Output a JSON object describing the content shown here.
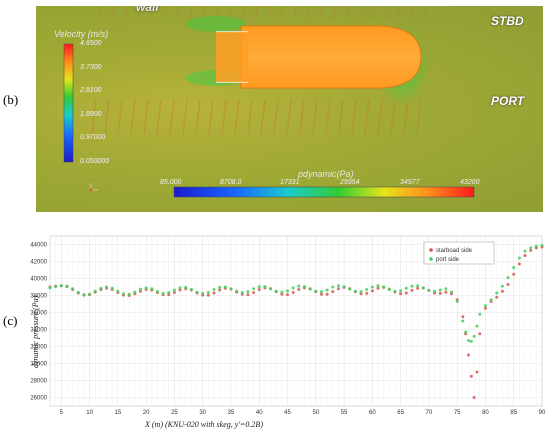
{
  "panels": {
    "b_label": "(b)",
    "c_label": "(c)"
  },
  "simulation": {
    "wall_label": "wall",
    "stbd_label": "STBD",
    "port_label": "PORT",
    "velocity_legend": {
      "title": "Velocity (m/s)",
      "ticks": [
        "4.6500",
        "3.7300",
        "2.8100",
        "1.8900",
        "0.97000",
        "0.050000"
      ]
    },
    "pressure_legend": {
      "title": "pdynamic(Pa)",
      "ticks": [
        "85.000",
        "8708.0",
        "17331",
        "25954",
        "34577",
        "43200"
      ]
    },
    "colors": {
      "background": "#a3aa36",
      "hull": "#ffa42a",
      "hull_edge": "#e07a10"
    }
  },
  "chart_data": {
    "type": "scatter",
    "xlabel": "X (m)    (KNU-020 with skeg, y'=0.2B)",
    "ylabel": "dynamic pressure (Pa)",
    "xlim": [
      3,
      90
    ],
    "ylim": [
      25000,
      45000
    ],
    "xticks": [
      5,
      10,
      15,
      20,
      25,
      30,
      35,
      40,
      45,
      50,
      55,
      60,
      65,
      70,
      75,
      80,
      85,
      90
    ],
    "yticks": [
      26000,
      28000,
      30000,
      32000,
      34000,
      36000,
      38000,
      40000,
      42000,
      44000
    ],
    "legend_position": "top-right",
    "grid": true,
    "series": [
      {
        "name": "starboad side",
        "color": "#d9534f",
        "x": [
          3,
          4,
          5,
          6,
          7,
          8,
          9,
          10,
          11,
          12,
          13,
          14,
          15,
          16,
          17,
          18,
          19,
          20,
          21,
          22,
          23,
          24,
          25,
          26,
          27,
          28,
          29,
          30,
          31,
          32,
          33,
          34,
          35,
          36,
          37,
          38,
          39,
          40,
          41,
          42,
          43,
          44,
          45,
          46,
          47,
          48,
          49,
          50,
          51,
          52,
          53,
          54,
          55,
          56,
          57,
          58,
          59,
          60,
          61,
          62,
          63,
          64,
          65,
          66,
          67,
          68,
          69,
          70,
          71,
          72,
          73,
          74,
          75,
          76,
          76.5,
          77,
          77.5,
          78,
          78.5,
          79,
          80,
          81,
          82,
          83,
          84,
          85,
          86,
          87,
          88,
          89,
          90
        ],
        "y": [
          39000,
          39100,
          39150,
          39050,
          38700,
          38300,
          38050,
          38100,
          38400,
          38700,
          38850,
          38700,
          38350,
          38050,
          38000,
          38200,
          38500,
          38700,
          38650,
          38350,
          38100,
          38100,
          38350,
          38650,
          38800,
          38650,
          38300,
          38050,
          38050,
          38300,
          38650,
          38850,
          38750,
          38400,
          38150,
          38100,
          38350,
          38700,
          38900,
          38800,
          38450,
          38150,
          38100,
          38350,
          38700,
          38900,
          38800,
          38450,
          38150,
          38150,
          38450,
          38800,
          38950,
          38800,
          38450,
          38200,
          38250,
          38550,
          38850,
          38950,
          38750,
          38400,
          38200,
          38300,
          38600,
          38850,
          38900,
          38600,
          38300,
          38250,
          38400,
          38200,
          37500,
          35500,
          33500,
          31000,
          28500,
          26000,
          29000,
          33500,
          36500,
          37300,
          37800,
          38500,
          39300,
          40500,
          41700,
          42700,
          43300,
          43600,
          43700
        ]
      },
      {
        "name": "port side",
        "color": "#3ecf5a",
        "x": [
          3,
          4,
          5,
          6,
          7,
          8,
          9,
          10,
          11,
          12,
          13,
          14,
          15,
          16,
          17,
          18,
          19,
          20,
          21,
          22,
          23,
          24,
          25,
          26,
          27,
          28,
          29,
          30,
          31,
          32,
          33,
          34,
          35,
          36,
          37,
          38,
          39,
          40,
          41,
          42,
          43,
          44,
          45,
          46,
          47,
          48,
          49,
          50,
          51,
          52,
          53,
          54,
          55,
          56,
          57,
          58,
          59,
          60,
          61,
          62,
          63,
          64,
          65,
          66,
          67,
          68,
          69,
          70,
          71,
          72,
          73,
          74,
          75,
          76,
          76.5,
          77,
          77.5,
          78,
          78.5,
          79,
          80,
          81,
          82,
          83,
          84,
          85,
          86,
          87,
          88,
          89,
          90
        ],
        "y": [
          38900,
          39050,
          39150,
          39100,
          38800,
          38350,
          38100,
          38150,
          38500,
          38850,
          39000,
          38850,
          38500,
          38200,
          38150,
          38400,
          38750,
          38900,
          38800,
          38450,
          38250,
          38350,
          38650,
          38900,
          38950,
          38700,
          38400,
          38250,
          38350,
          38700,
          38950,
          39000,
          38800,
          38500,
          38350,
          38450,
          38800,
          39050,
          39050,
          38800,
          38500,
          38400,
          38550,
          38900,
          39100,
          39050,
          38750,
          38500,
          38450,
          38650,
          39000,
          39150,
          39050,
          38750,
          38500,
          38450,
          38700,
          39000,
          39150,
          39000,
          38700,
          38500,
          38550,
          38850,
          39100,
          39150,
          38900,
          38600,
          38500,
          38650,
          38800,
          38400,
          37300,
          35000,
          33700,
          32700,
          32600,
          33200,
          34400,
          35800,
          36800,
          37500,
          38300,
          39100,
          40100,
          41300,
          42400,
          43200,
          43600,
          43800,
          43900
        ]
      }
    ]
  }
}
